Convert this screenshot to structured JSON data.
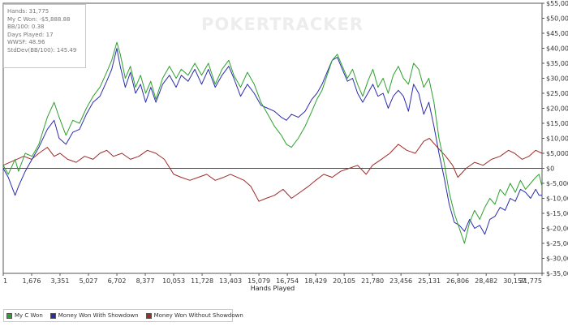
{
  "stats": {
    "hands": "Hands: 31,775",
    "my_c_won": "My C Won: -$5,888.88",
    "bb100": "BB/100: 0.38",
    "days_played": "Days Played: 17",
    "wwsf": "WWSF: 48.96",
    "stddev": "StdDev(BB/100): 145.49"
  },
  "watermark": "POKERTRACKER",
  "chart_data": {
    "type": "line",
    "xlabel": "Hands Played",
    "ylabel": "",
    "title": "",
    "xlim": [
      1,
      31775
    ],
    "ylim": [
      -35000,
      55000
    ],
    "x_ticks": [
      1,
      1676,
      3351,
      5027,
      6702,
      8377,
      10053,
      11728,
      13403,
      15079,
      16754,
      18429,
      20105,
      21780,
      23456,
      25131,
      26806,
      28482,
      30157,
      31775
    ],
    "x_tick_labels": [
      "1",
      "1,676",
      "3,351",
      "5,027",
      "6,702",
      "8,377",
      "10,053",
      "11,728",
      "13,403",
      "15,079",
      "16,754",
      "18,429",
      "20,105",
      "21,780",
      "23,456",
      "25,131",
      "26,806",
      "28,482",
      "30,157",
      "31,775"
    ],
    "y_ticks": [
      55000,
      50000,
      45000,
      40000,
      35000,
      30000,
      25000,
      20000,
      15000,
      10000,
      5000,
      0,
      -5000,
      -10000,
      -15000,
      -20000,
      -25000,
      -30000,
      -35000
    ],
    "y_tick_labels": [
      "$55,000",
      "$50,000",
      "$45,000",
      "$40,000",
      "$35,000",
      "$30,000",
      "$25,000",
      "$20,000",
      "$15,000",
      "$10,000",
      "$5,000",
      "$0",
      "$-5,000",
      "$-10,000",
      "$-15,000",
      "$-20,000",
      "$-25,000",
      "$-30,000",
      "$-35,000"
    ],
    "grid": false,
    "legend_position": "bottom-left",
    "series": [
      {
        "name": "My C Won",
        "color": "#2ca02c",
        "x": [
          1,
          300,
          700,
          900,
          1300,
          1700,
          2100,
          2600,
          3000,
          3300,
          3700,
          4100,
          4500,
          4900,
          5300,
          5700,
          6100,
          6400,
          6700,
          6900,
          7200,
          7500,
          7800,
          8100,
          8400,
          8700,
          9000,
          9400,
          9800,
          10200,
          10500,
          10900,
          11300,
          11700,
          12100,
          12500,
          12900,
          13300,
          13600,
          14000,
          14400,
          14800,
          15200,
          15600,
          16000,
          16400,
          16700,
          17000,
          17400,
          17800,
          18200,
          18500,
          18800,
          19100,
          19400,
          19700,
          20000,
          20300,
          20600,
          20900,
          21200,
          21500,
          21800,
          22100,
          22400,
          22700,
          23000,
          23300,
          23600,
          23900,
          24200,
          24500,
          24800,
          25100,
          25400,
          25700,
          26000,
          26300,
          26600,
          26900,
          27200,
          27500,
          27800,
          28100,
          28400,
          28700,
          29000,
          29300,
          29600,
          29900,
          30200,
          30500,
          30800,
          31100,
          31400,
          31600,
          31775
        ],
        "values": [
          1000,
          -2000,
          3000,
          -1000,
          5000,
          4000,
          8000,
          17000,
          22000,
          17000,
          11000,
          16000,
          15000,
          20000,
          24000,
          27000,
          32000,
          36000,
          42000,
          38000,
          30000,
          34000,
          27000,
          31000,
          25000,
          29000,
          23000,
          30000,
          34000,
          30000,
          33000,
          31000,
          35000,
          31000,
          35000,
          28000,
          33000,
          36000,
          31000,
          27000,
          32000,
          28000,
          22000,
          18000,
          14000,
          11000,
          8000,
          7000,
          10000,
          14000,
          19000,
          23000,
          26000,
          31000,
          36000,
          38000,
          34000,
          30000,
          33000,
          28000,
          24000,
          29000,
          33000,
          27000,
          30000,
          25000,
          31000,
          34000,
          30000,
          28000,
          35000,
          33000,
          27000,
          30000,
          22000,
          10000,
          2000,
          -8000,
          -15000,
          -20000,
          -25000,
          -18000,
          -14000,
          -17000,
          -13000,
          -10000,
          -12000,
          -7000,
          -9000,
          -5000,
          -8000,
          -4000,
          -7000,
          -5000,
          -3000,
          -2000,
          -6000
        ]
      },
      {
        "name": "Money Won With Showdown",
        "color": "#2b2bb0",
        "x": [
          1,
          300,
          700,
          900,
          1300,
          1700,
          2100,
          2600,
          3000,
          3300,
          3700,
          4100,
          4500,
          4900,
          5300,
          5700,
          6100,
          6400,
          6700,
          6900,
          7200,
          7500,
          7800,
          8100,
          8400,
          8700,
          9000,
          9400,
          9800,
          10200,
          10500,
          10900,
          11300,
          11700,
          12100,
          12500,
          12900,
          13300,
          13600,
          14000,
          14400,
          14800,
          15200,
          15600,
          16000,
          16400,
          16700,
          17000,
          17400,
          17800,
          18200,
          18500,
          18800,
          19100,
          19400,
          19700,
          20000,
          20300,
          20600,
          20900,
          21200,
          21500,
          21800,
          22100,
          22400,
          22700,
          23000,
          23300,
          23600,
          23900,
          24200,
          24500,
          24800,
          25100,
          25400,
          25700,
          26000,
          26300,
          26600,
          26900,
          27200,
          27500,
          27800,
          28100,
          28400,
          28700,
          29000,
          29300,
          29600,
          29900,
          30200,
          30500,
          30800,
          31100,
          31400,
          31600,
          31775
        ],
        "values": [
          0,
          -3000,
          -9000,
          -6000,
          -1000,
          3000,
          7000,
          13000,
          16000,
          10000,
          8000,
          12000,
          13000,
          18000,
          22000,
          24000,
          29000,
          33000,
          40000,
          34000,
          27000,
          32000,
          25000,
          28000,
          22000,
          27000,
          22000,
          28000,
          31000,
          27000,
          31000,
          29000,
          33000,
          28000,
          33000,
          27000,
          31000,
          34000,
          30000,
          24000,
          28000,
          25000,
          21000,
          20000,
          19000,
          17000,
          16000,
          18000,
          17000,
          19000,
          23000,
          25000,
          28000,
          32000,
          36000,
          37000,
          33000,
          29000,
          30000,
          25000,
          22000,
          25000,
          28000,
          24000,
          25000,
          20000,
          24000,
          26000,
          24000,
          19000,
          28000,
          25000,
          18000,
          22000,
          14000,
          5000,
          -3000,
          -12000,
          -18000,
          -19000,
          -21000,
          -17000,
          -20000,
          -19000,
          -22000,
          -17000,
          -16000,
          -13000,
          -14000,
          -10000,
          -11000,
          -7000,
          -8000,
          -10000,
          -7000,
          -9000,
          -9000
        ]
      },
      {
        "name": "Money Won Without Showdown",
        "color": "#a12a2a",
        "x": [
          1,
          400,
          800,
          1200,
          1676,
          2100,
          2600,
          3000,
          3351,
          3800,
          4300,
          4800,
          5300,
          5700,
          6100,
          6500,
          7000,
          7500,
          8000,
          8500,
          9000,
          9500,
          10053,
          10500,
          11000,
          11500,
          12000,
          12500,
          13000,
          13403,
          13800,
          14200,
          14600,
          15079,
          15500,
          16000,
          16500,
          17000,
          17500,
          18000,
          18429,
          18900,
          19400,
          19900,
          20400,
          20900,
          21400,
          21780,
          22300,
          22800,
          23300,
          23800,
          24300,
          24800,
          25131,
          25600,
          26100,
          26500,
          26806,
          27300,
          27800,
          28300,
          28800,
          29300,
          29800,
          30157,
          30600,
          31000,
          31400,
          31775
        ],
        "values": [
          1000,
          2000,
          3000,
          4000,
          3000,
          5000,
          7000,
          4000,
          5000,
          3000,
          2000,
          4000,
          3000,
          5000,
          6000,
          4000,
          5000,
          3000,
          4000,
          6000,
          5000,
          3000,
          -2000,
          -3000,
          -4000,
          -3000,
          -2000,
          -4000,
          -3000,
          -2000,
          -3000,
          -4000,
          -6000,
          -11000,
          -10000,
          -9000,
          -7000,
          -10000,
          -8000,
          -6000,
          -4000,
          -2000,
          -3000,
          -1000,
          0,
          1000,
          -2000,
          1000,
          3000,
          5000,
          8000,
          6000,
          5000,
          9000,
          10000,
          7000,
          4000,
          1000,
          -3000,
          0,
          2000,
          1000,
          3000,
          4000,
          6000,
          5000,
          3000,
          4000,
          6000,
          5000
        ]
      }
    ]
  },
  "legend": {
    "items": [
      {
        "label": "My C Won",
        "color": "#2ca02c"
      },
      {
        "label": "Money Won With Showdown",
        "color": "#2b2bb0"
      },
      {
        "label": "Money Won Without Showdown",
        "color": "#a12a2a"
      }
    ]
  }
}
